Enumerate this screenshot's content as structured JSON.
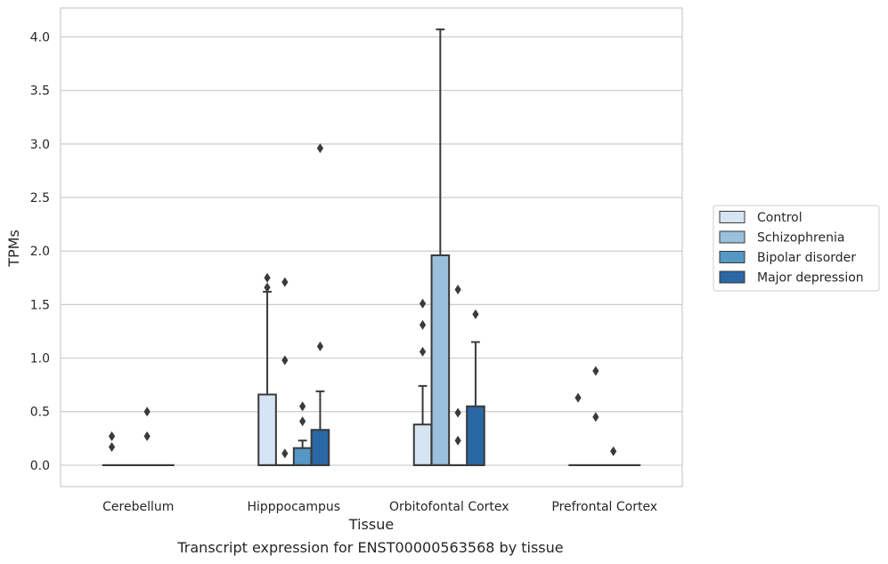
{
  "caption": "Transcript expression for ENST00000563568 by tissue",
  "chart_data": {
    "type": "box",
    "xlabel": "Tissue",
    "ylabel": "TPMs",
    "ylim": [
      -0.2,
      4.27
    ],
    "yticks": [
      0.0,
      0.5,
      1.0,
      1.5,
      2.0,
      2.5,
      3.0,
      3.5,
      4.0
    ],
    "ytick_labels": [
      "0.0",
      "0.5",
      "1.0",
      "1.5",
      "2.0",
      "2.5",
      "3.0",
      "3.5",
      "4.0"
    ],
    "grid": true,
    "legend_position": "right",
    "categories": [
      "Cerebellum",
      "Hipppocampus",
      "Orbitofontal Cortex",
      "Prefrontal Cortex"
    ],
    "series": [
      {
        "name": "Control",
        "color": "#d6e5f4",
        "boxes": [
          {
            "q1": 0,
            "median": 0,
            "q3": 0,
            "whisker_low": 0,
            "whisker_high": 0,
            "outliers": [
              0.17,
              0.27
            ]
          },
          {
            "q1": 0,
            "median": 0,
            "q3": 0.66,
            "whisker_low": 0,
            "whisker_high": 1.62,
            "outliers": [
              1.66,
              1.75
            ]
          },
          {
            "q1": 0,
            "median": 0,
            "q3": 0.38,
            "whisker_low": 0,
            "whisker_high": 0.74,
            "outliers": [
              1.06,
              1.31,
              1.51
            ]
          },
          {
            "q1": 0,
            "median": 0,
            "q3": 0,
            "whisker_low": 0,
            "whisker_high": 0,
            "outliers": [
              0.63
            ]
          }
        ]
      },
      {
        "name": "Schizophrenia",
        "color": "#9ac0dc",
        "boxes": [
          {
            "q1": 0,
            "median": 0,
            "q3": 0,
            "whisker_low": 0,
            "whisker_high": 0,
            "outliers": []
          },
          {
            "q1": 0,
            "median": 0,
            "q3": 0,
            "whisker_low": 0,
            "whisker_high": 0,
            "outliers": [
              0.11,
              0.98,
              1.71
            ]
          },
          {
            "q1": 0,
            "median": 0,
            "q3": 1.96,
            "whisker_low": 0,
            "whisker_high": 4.07,
            "outliers": []
          },
          {
            "q1": 0,
            "median": 0,
            "q3": 0,
            "whisker_low": 0,
            "whisker_high": 0,
            "outliers": [
              0.45,
              0.88
            ]
          }
        ]
      },
      {
        "name": "Bipolar disorder",
        "color": "#5597c5",
        "boxes": [
          {
            "q1": 0,
            "median": 0,
            "q3": 0,
            "whisker_low": 0,
            "whisker_high": 0,
            "outliers": [
              0.27,
              0.5
            ]
          },
          {
            "q1": 0,
            "median": 0,
            "q3": 0.16,
            "whisker_low": 0,
            "whisker_high": 0.23,
            "outliers": [
              0.41,
              0.55
            ]
          },
          {
            "q1": 0,
            "median": 0,
            "q3": 0,
            "whisker_low": 0,
            "whisker_high": 0,
            "outliers": [
              0.23,
              0.49,
              1.64
            ]
          },
          {
            "q1": 0,
            "median": 0,
            "q3": 0,
            "whisker_low": 0,
            "whisker_high": 0,
            "outliers": [
              0.13
            ]
          }
        ]
      },
      {
        "name": "Major depression",
        "color": "#2a67a5",
        "boxes": [
          {
            "q1": 0,
            "median": 0,
            "q3": 0,
            "whisker_low": 0,
            "whisker_high": 0,
            "outliers": []
          },
          {
            "q1": 0,
            "median": 0,
            "q3": 0.33,
            "whisker_low": 0,
            "whisker_high": 0.69,
            "outliers": [
              1.11,
              2.96
            ]
          },
          {
            "q1": 0,
            "median": 0,
            "q3": 0.55,
            "whisker_low": 0,
            "whisker_high": 1.15,
            "outliers": [
              1.41
            ]
          },
          {
            "q1": 0,
            "median": 0,
            "q3": 0,
            "whisker_low": 0,
            "whisker_high": 0,
            "outliers": []
          }
        ]
      }
    ]
  }
}
